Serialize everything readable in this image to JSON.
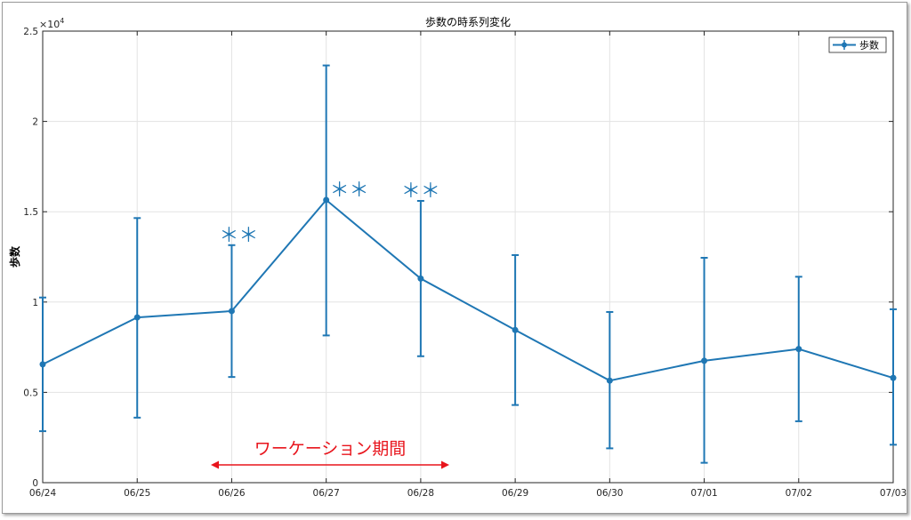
{
  "chart_data": {
    "type": "line",
    "title": "歩数の時系列変化",
    "ylabel": "歩数",
    "xlabel": "",
    "y_exponent_label": "×10",
    "y_exponent_power": "4",
    "categories": [
      "06/24",
      "06/25",
      "06/26",
      "06/27",
      "06/28",
      "06/29",
      "06/30",
      "07/01",
      "07/02",
      "07/03"
    ],
    "series": [
      {
        "name": "歩数",
        "values": [
          6550,
          9150,
          9500,
          15650,
          11300,
          8450,
          5650,
          6750,
          7400,
          5800
        ],
        "err_low": [
          2850,
          3600,
          5850,
          8150,
          7000,
          4300,
          1900,
          1100,
          3400,
          2100
        ],
        "err_high": [
          10250,
          14650,
          13150,
          23100,
          15600,
          12600,
          9450,
          12450,
          11400,
          9600
        ]
      }
    ],
    "ylim": [
      0,
      25000
    ],
    "yticks": [
      0,
      0.5,
      1,
      1.5,
      2,
      2.5
    ],
    "yticks_values": [
      0,
      5000,
      10000,
      15000,
      20000,
      25000
    ],
    "grid": true,
    "legend_position": "top-right",
    "series_color": "#1f77b4",
    "annotations": [
      {
        "text": "＊＊",
        "category": "06/26"
      },
      {
        "text": "＊＊",
        "category": "06/27"
      },
      {
        "text": "＊＊",
        "category": "06/28"
      }
    ],
    "period_annotation": {
      "text": "ワーケーション期間",
      "color": "#e8141c"
    }
  }
}
